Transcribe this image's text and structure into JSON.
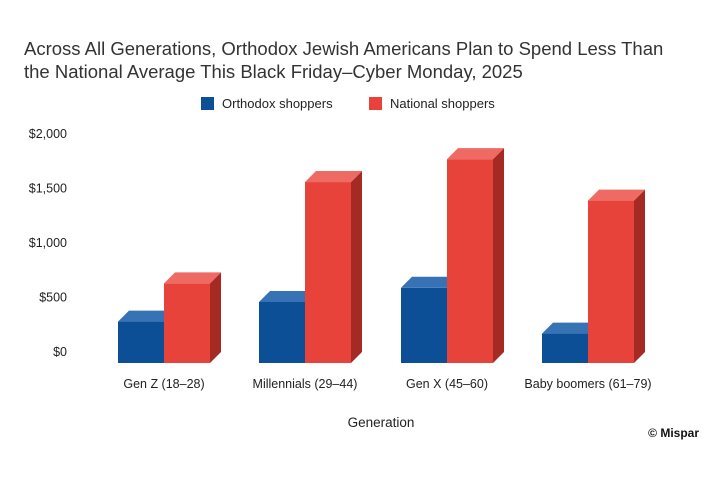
{
  "chart_data": {
    "type": "bar",
    "title": "Across All Generations, Orthodox Jewish Americans Plan to Spend Less Than the National Average This Black Friday–Cyber Monday, 2025",
    "title_lines": [
      "Across All Generations, Orthodox Jewish Americans Plan to Spend Less Than",
      "the National Average This Black Friday–Cyber Monday, 2025"
    ],
    "xlabel": "Generation",
    "ylabel": "",
    "ylim": [
      0,
      2000
    ],
    "yticks": [
      0,
      500,
      1000,
      1500,
      2000
    ],
    "ytick_labels": [
      "$0",
      "$500",
      "$1,000",
      "$1,500",
      "$2,000"
    ],
    "categories": [
      "Gen Z (18–28)",
      "Millennials (29–44)",
      "Gen X (45–60)",
      "Baby boomers (61–79)"
    ],
    "series": [
      {
        "name": "Orthodox shoppers",
        "color": "#0d4f96",
        "top_color": "#3672b4",
        "side_color": "#083a72",
        "values": [
          380,
          560,
          690,
          270
        ]
      },
      {
        "name": "National shoppers",
        "color": "#e8433a",
        "top_color": "#ee6a62",
        "side_color": "#a62a24",
        "values": [
          730,
          1660,
          1870,
          1490
        ]
      }
    ],
    "legend_position": "top-center",
    "grid": false,
    "style": "3d-bars"
  },
  "credit": "© Mispar"
}
